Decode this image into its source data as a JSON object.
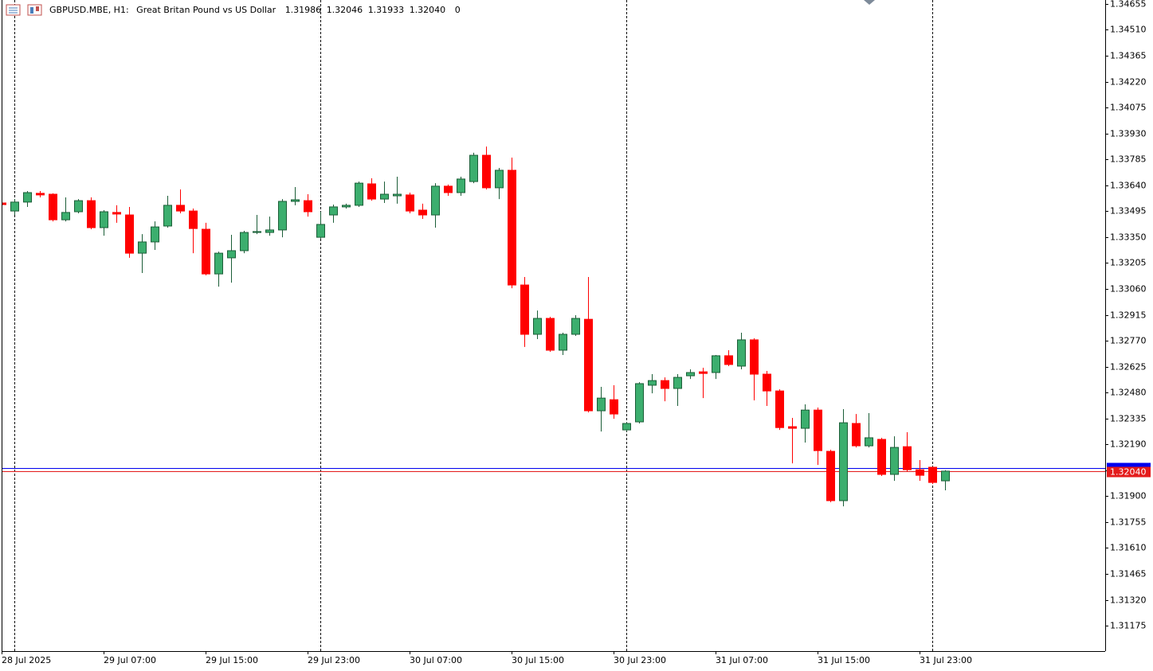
{
  "chart_data": {
    "type": "candlestick",
    "legend_text": {
      "symbol": "GBPUSD.MBE, H1:",
      "description": "Great Britan Pound vs US Dollar",
      "ohlc": [
        "1.31986",
        "1.32046",
        "1.31933",
        "1.32040"
      ],
      "volume": 0
    },
    "categories": [
      "28 Jul 2025",
      null,
      null,
      null,
      null,
      null,
      null,
      null,
      "29 Jul 07:00",
      null,
      null,
      null,
      null,
      null,
      null,
      null,
      "29 Jul 15:00",
      null,
      null,
      null,
      null,
      null,
      null,
      null,
      "29 Jul 23:00",
      null,
      null,
      null,
      null,
      null,
      null,
      null,
      "30 Jul 07:00",
      null,
      null,
      null,
      null,
      null,
      null,
      null,
      "30 Jul 15:00",
      null,
      null,
      null,
      null,
      null,
      null,
      null,
      "30 Jul 23:00",
      null,
      null,
      null,
      null,
      null,
      null,
      null,
      "31 Jul 07:00",
      null,
      null,
      null,
      null,
      null,
      null,
      null,
      "31 Jul 15:00",
      null,
      null,
      null,
      null,
      null,
      null,
      null,
      "31 Jul 23:00",
      null,
      null
    ],
    "open": [
      1.33541,
      1.33496,
      1.33546,
      1.33595,
      1.3359,
      1.33447,
      1.33492,
      1.33554,
      1.33403,
      1.33488,
      1.33474,
      1.3326,
      1.33323,
      1.33412,
      1.33528,
      1.33496,
      1.33394,
      1.33144,
      1.33234,
      1.33274,
      1.33376,
      1.33376,
      1.3339,
      1.3355,
      1.33554,
      1.33349,
      1.33474,
      1.33519,
      1.33528,
      1.33648,
      1.33563,
      1.33581,
      1.33586,
      1.33501,
      1.33474,
      1.33635,
      1.33599,
      1.33661,
      1.33808,
      1.33626,
      1.33724,
      1.33082,
      1.32806,
      1.32895,
      1.32717,
      1.32806,
      1.3289,
      1.32378,
      1.3244,
      1.32271,
      1.32316,
      1.32521,
      1.32547,
      1.32503,
      1.32574,
      1.32596,
      1.32592,
      1.32686,
      1.32628,
      1.32775,
      1.32583,
      1.32489,
      1.32289,
      1.3228,
      1.32382,
      1.32151,
      1.31875,
      1.32307,
      1.32182,
      1.32218,
      1.32022,
      1.32177,
      1.32048,
      1.32062,
      1.31986
    ],
    "high": [
      1.33546,
      1.33563,
      1.33608,
      1.33608,
      1.33595,
      1.33572,
      1.33563,
      1.33572,
      1.33501,
      1.33528,
      1.33519,
      1.33367,
      1.33438,
      1.33581,
      1.33617,
      1.3351,
      1.3343,
      1.33269,
      1.33363,
      1.33385,
      1.33474,
      1.33465,
      1.33563,
      1.3363,
      1.3359,
      1.33492,
      1.33532,
      1.33537,
      1.33661,
      1.33679,
      1.33661,
      1.33688,
      1.33599,
      1.33537,
      1.33652,
      1.33644,
      1.33688,
      1.33822,
      1.33857,
      1.33737,
      1.33795,
      1.33127,
      1.32939,
      1.32904,
      1.32815,
      1.32913,
      1.33127,
      1.32512,
      1.32521,
      1.32316,
      1.32538,
      1.32583,
      1.32565,
      1.32583,
      1.3261,
      1.32619,
      1.3269,
      1.32717,
      1.32815,
      1.32784,
      1.32601,
      1.32498,
      1.32338,
      1.32414,
      1.32396,
      1.3216,
      1.32387,
      1.3236,
      1.32365,
      1.32227,
      1.32235,
      1.32258,
      1.32102,
      1.32066,
      1.32046
    ],
    "low": [
      1.33528,
      1.33474,
      1.33519,
      1.33572,
      1.33438,
      1.33438,
      1.33483,
      1.33394,
      1.33358,
      1.3343,
      1.33234,
      1.33149,
      1.33278,
      1.33403,
      1.33483,
      1.3326,
      1.33136,
      1.33073,
      1.33095,
      1.3326,
      1.33367,
      1.33358,
      1.33349,
      1.33528,
      1.33465,
      1.33341,
      1.3343,
      1.3351,
      1.33519,
      1.33554,
      1.33541,
      1.33537,
      1.33483,
      1.33452,
      1.33403,
      1.33581,
      1.33581,
      1.33652,
      1.33617,
      1.33563,
      1.33064,
      1.32735,
      1.32779,
      1.32708,
      1.3269,
      1.32797,
      1.32369,
      1.32262,
      1.32333,
      1.32262,
      1.32307,
      1.32476,
      1.32431,
      1.32405,
      1.32556,
      1.32449,
      1.32556,
      1.32628,
      1.3261,
      1.32436,
      1.32405,
      1.32271,
      1.32084,
      1.322,
      1.32075,
      1.31866,
      1.31843,
      1.32173,
      1.32173,
      1.32013,
      1.31986,
      1.32039,
      1.31986,
      1.31968,
      1.31933
    ],
    "close": [
      1.33532,
      1.33546,
      1.33599,
      1.33586,
      1.33447,
      1.33488,
      1.33554,
      1.33403,
      1.33492,
      1.33479,
      1.3326,
      1.33323,
      1.33407,
      1.33528,
      1.33496,
      1.33398,
      1.33144,
      1.3326,
      1.33274,
      1.33376,
      1.33381,
      1.3339,
      1.3355,
      1.33559,
      1.33492,
      1.33421,
      1.33519,
      1.33528,
      1.33652,
      1.33563,
      1.3359,
      1.3359,
      1.33496,
      1.33474,
      1.33635,
      1.33599,
      1.33675,
      1.33808,
      1.33626,
      1.33724,
      1.33082,
      1.32806,
      1.32895,
      1.32717,
      1.32806,
      1.32895,
      1.32378,
      1.32449,
      1.3236,
      1.32307,
      1.3253,
      1.32547,
      1.32503,
      1.32565,
      1.32592,
      1.32587,
      1.32686,
      1.32637,
      1.32775,
      1.32583,
      1.32489,
      1.32284,
      1.3228,
      1.32382,
      1.32155,
      1.31875,
      1.32311,
      1.32182,
      1.32227,
      1.32022,
      1.32173,
      1.32048,
      1.32017,
      1.31977,
      1.3204
    ],
    "up_color": "#3cae6e",
    "up_border": "#1c5e38",
    "down_color": "#ff0000",
    "bid": {
      "value": 1.3204,
      "label": "1.32040",
      "color": "#e41b1b"
    },
    "ask": {
      "value": 1.32058,
      "color": "#0000ee"
    },
    "ylim": [
      1.31033,
      1.34677
    ],
    "yticks": [
      1.34655,
      {
        "value": 1.3451,
        "label": "1.34510"
      },
      1.34365,
      {
        "value": 1.3422,
        "label": "1.34220"
      },
      1.34075,
      {
        "value": 1.3393,
        "label": "1.33930"
      },
      1.33785,
      {
        "value": 1.3364,
        "label": "1.33640"
      },
      1.33495,
      {
        "value": 1.3335,
        "label": "1.33350"
      },
      1.33205,
      {
        "value": 1.3306,
        "label": "1.33060"
      },
      1.32915,
      {
        "value": 1.3277,
        "label": "1.32770"
      },
      1.32625,
      {
        "value": 1.3248,
        "label": "1.32480"
      },
      1.32335,
      {
        "value": 1.3219,
        "label": "1.32190"
      },
      1.32045,
      {
        "value": 1.319,
        "label": "1.31900"
      },
      1.31755,
      {
        "value": 1.3161,
        "label": "1.31610"
      },
      1.31465,
      {
        "value": 1.3132,
        "label": "1.31320"
      },
      1.31175
    ],
    "grid": false
  }
}
